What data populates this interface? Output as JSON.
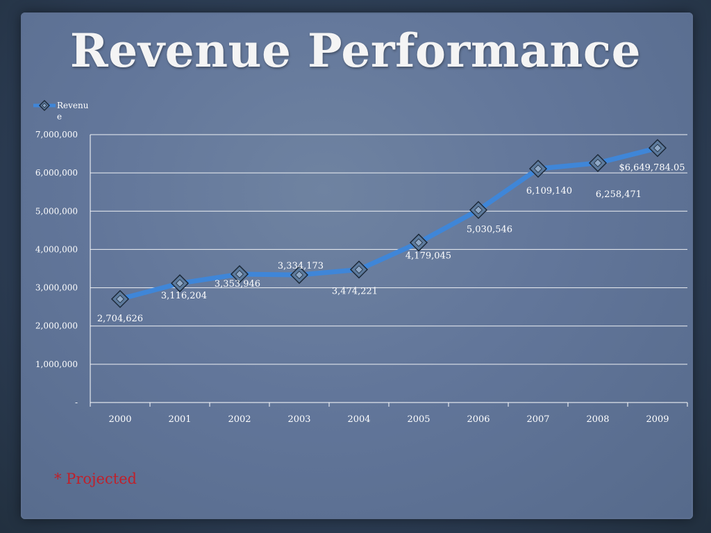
{
  "slide": {
    "title": "Revenue Performance",
    "footnote": "* Projected"
  },
  "colors": {
    "line": "#3f86d8",
    "marker": "#5d7a9c",
    "label": "#ffffff",
    "grid": "#ffffff",
    "footnote": "#c0202a"
  },
  "chart_data": {
    "type": "line",
    "title": "",
    "xlabel": "",
    "ylabel": "",
    "categories": [
      "2000",
      "2001",
      "2002",
      "2003",
      "2004",
      "2005",
      "2006",
      "2007",
      "2008",
      "2009"
    ],
    "series": [
      {
        "name": "Revenue",
        "values": [
          2704626,
          3116204,
          3353946,
          3334173,
          3474221,
          4179045,
          5030546,
          6109140,
          6258471,
          6649784.05
        ],
        "data_labels": [
          "2,704,626",
          "3,116,204",
          "3,353,946",
          "3,334,173",
          "3,474,221",
          "4,179,045",
          "5,030,546",
          "6,109,140",
          "6,258,471",
          "$6,649,784.05"
        ]
      }
    ],
    "ylim": [
      0,
      7000000
    ],
    "y_ticks": [
      0,
      1000000,
      2000000,
      3000000,
      4000000,
      5000000,
      6000000,
      7000000
    ],
    "y_tick_labels": [
      "-",
      "1,000,000",
      "2,000,000",
      "3,000,000",
      "4,000,000",
      "5,000,000",
      "6,000,000",
      "7,000,000"
    ],
    "grid": true,
    "legend": {
      "position": "top-left",
      "label_lines": [
        "Revenu",
        "e"
      ]
    }
  }
}
